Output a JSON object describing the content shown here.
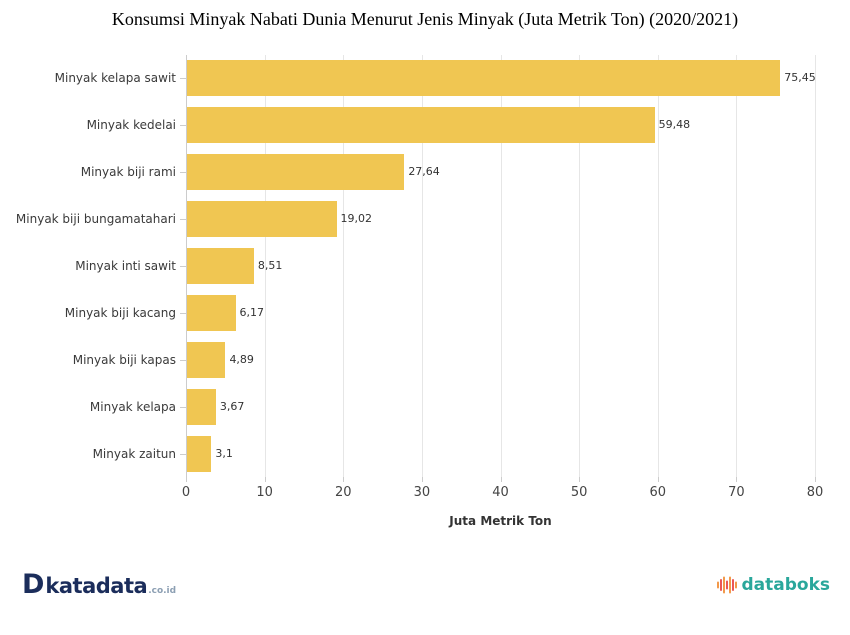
{
  "chart_data": {
    "type": "bar",
    "orientation": "horizontal",
    "title": "Konsumsi Minyak Nabati Dunia Menurut Jenis Minyak (Juta Metrik Ton) (2020/2021)",
    "categories": [
      "Minyak kelapa sawit",
      "Minyak kedelai",
      "Minyak biji rami",
      "Minyak biji bungamatahari",
      "Minyak inti sawit",
      "Minyak biji kacang",
      "Minyak biji kapas",
      "Minyak kelapa",
      "Minyak zaitun"
    ],
    "values": [
      75.45,
      59.48,
      27.64,
      19.02,
      8.51,
      6.17,
      4.89,
      3.67,
      3.1
    ],
    "value_labels": [
      "75,45",
      "59,48",
      "27,64",
      "19,02",
      "8,51",
      "6,17",
      "4,89",
      "3,67",
      "3,1"
    ],
    "xlabel": "Juta Metrik Ton",
    "xlim": [
      0,
      80
    ],
    "xticks": [
      0,
      10,
      20,
      30,
      40,
      50,
      60,
      70,
      80
    ],
    "grid": true,
    "legend": "none",
    "bar_color": "#F0C652"
  },
  "footer": {
    "katadata": {
      "icon_letter": "D",
      "name": "katadata",
      "suffix": ".co.id",
      "brand_color": "#1B2D5B",
      "suffix_color": "#8C9FB3"
    },
    "databoks": {
      "name": "databoks",
      "brand_color": "#2AA79B",
      "icon_bar_colors": [
        "#F2994A",
        "#EB5757"
      ],
      "icon_bar_heights": [
        7,
        12,
        17,
        9,
        17,
        12,
        7
      ]
    }
  }
}
